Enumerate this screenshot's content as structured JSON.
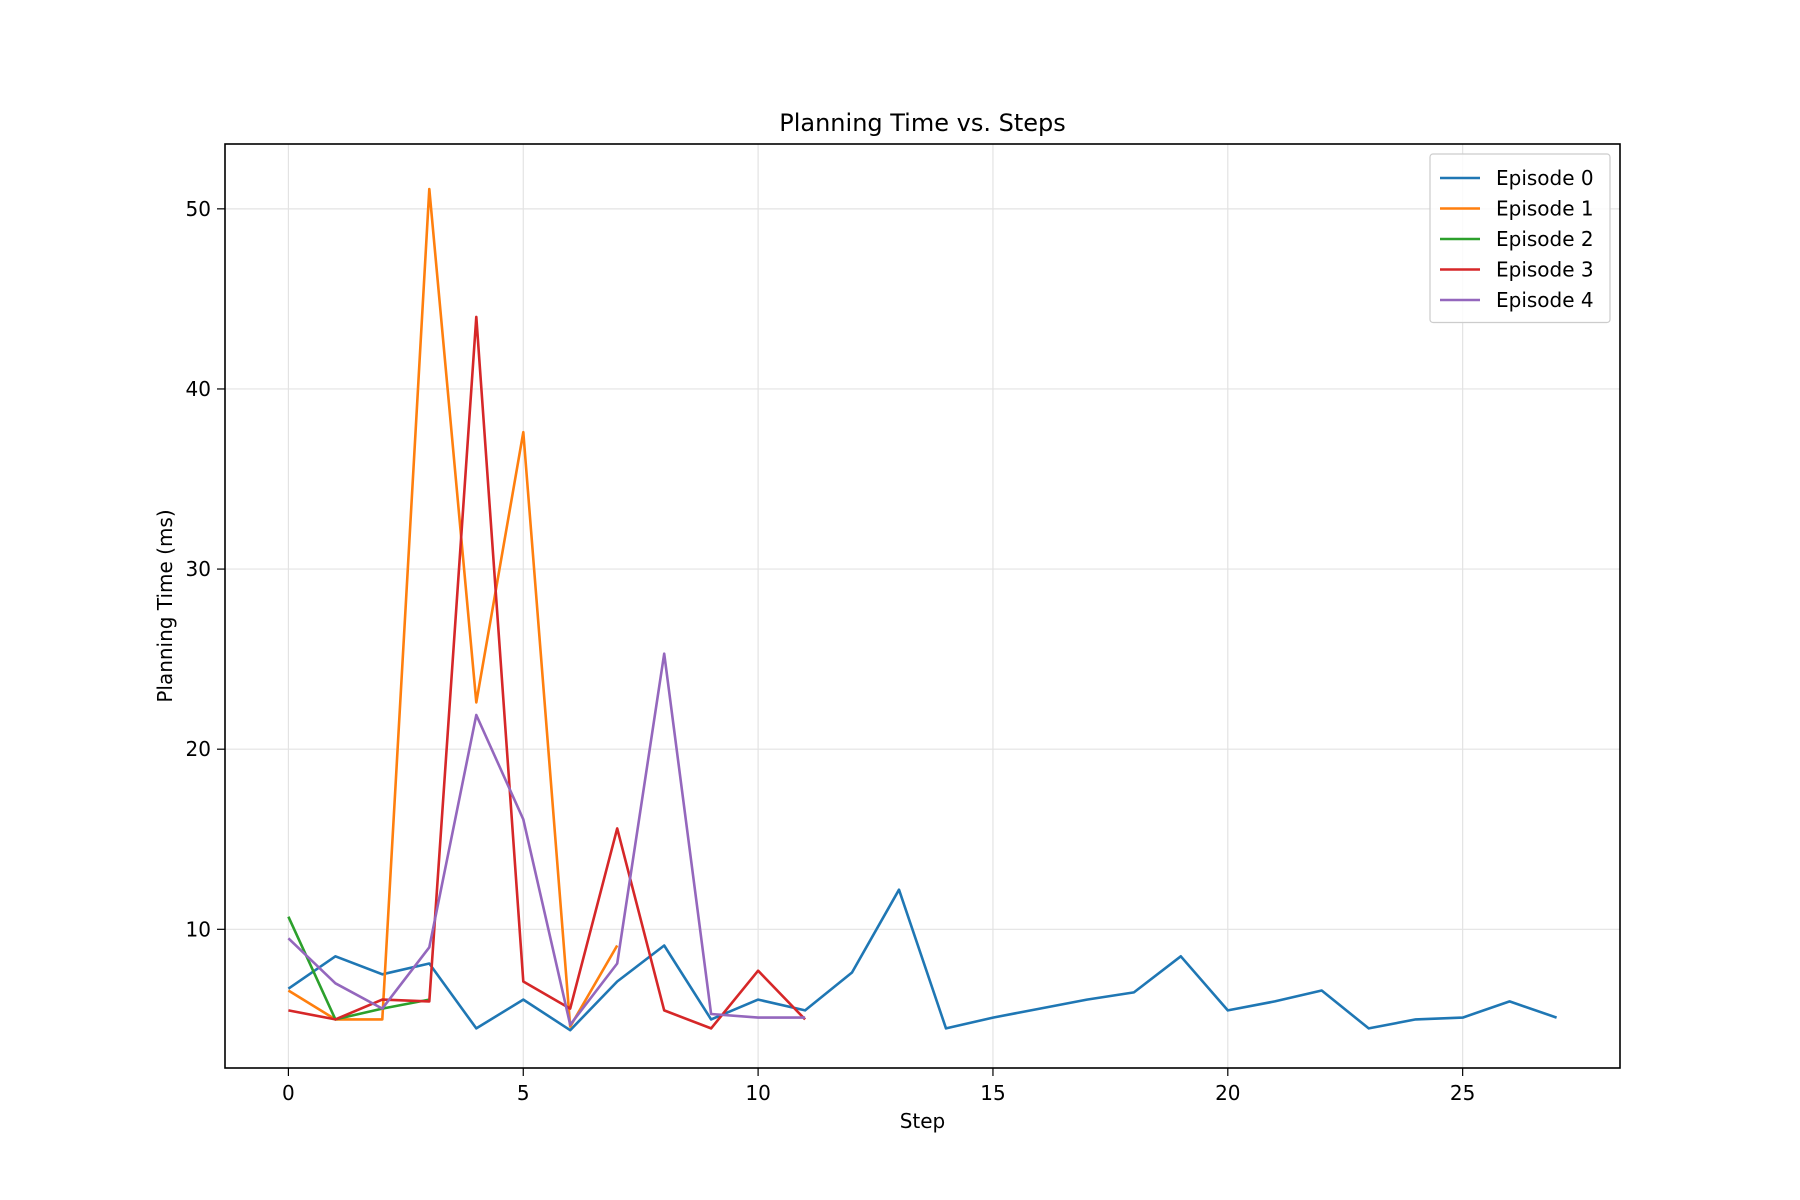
{
  "chart_data": {
    "type": "line",
    "title": "Planning Time vs. Steps",
    "xlabel": "Step",
    "ylabel": "Planning Time (ms)",
    "xlim": [
      -1.35,
      28.35
    ],
    "ylim": [
      2.3,
      53.6
    ],
    "xticks": [
      0,
      5,
      10,
      15,
      20,
      25
    ],
    "yticks": [
      10,
      20,
      30,
      40,
      50
    ],
    "grid": true,
    "legend_position": "top-right",
    "series": [
      {
        "name": "Episode 0",
        "color": "#1f77b4",
        "x": [
          0,
          1,
          2,
          3,
          4,
          5,
          6,
          7,
          8,
          9,
          10,
          11,
          12,
          13,
          14,
          15,
          16,
          17,
          18,
          19,
          20,
          21,
          22,
          23,
          24,
          25,
          26,
          27
        ],
        "y": [
          6.7,
          8.5,
          7.5,
          8.1,
          4.5,
          6.1,
          4.4,
          7.1,
          9.1,
          5.0,
          6.1,
          5.5,
          7.6,
          12.2,
          4.5,
          5.1,
          5.6,
          6.1,
          6.5,
          8.5,
          5.5,
          6.0,
          6.6,
          4.5,
          5.0,
          5.1,
          6.0,
          5.1
        ]
      },
      {
        "name": "Episode 1",
        "color": "#ff7f0e",
        "x": [
          0,
          1,
          2,
          3,
          4,
          5,
          6,
          7
        ],
        "y": [
          6.6,
          5.0,
          5.0,
          51.1,
          22.6,
          37.6,
          4.6,
          9.1
        ]
      },
      {
        "name": "Episode 2",
        "color": "#2ca02c",
        "x": [
          0,
          1,
          2,
          3
        ],
        "y": [
          10.7,
          5.0,
          5.6,
          6.1
        ]
      },
      {
        "name": "Episode 3",
        "color": "#d62728",
        "x": [
          0,
          1,
          2,
          3,
          4,
          5,
          6,
          7,
          8,
          9,
          10,
          11
        ],
        "y": [
          5.5,
          5.0,
          6.1,
          6.0,
          44.0,
          7.1,
          5.6,
          15.6,
          5.5,
          4.5,
          7.7,
          5.0
        ]
      },
      {
        "name": "Episode 4",
        "color": "#9467bd",
        "x": [
          0,
          1,
          2,
          3,
          4,
          5,
          6,
          7,
          8,
          9,
          10,
          11
        ],
        "y": [
          9.5,
          7.0,
          5.6,
          9.0,
          21.9,
          16.1,
          4.7,
          8.1,
          25.3,
          5.3,
          5.1,
          5.1
        ]
      }
    ]
  }
}
